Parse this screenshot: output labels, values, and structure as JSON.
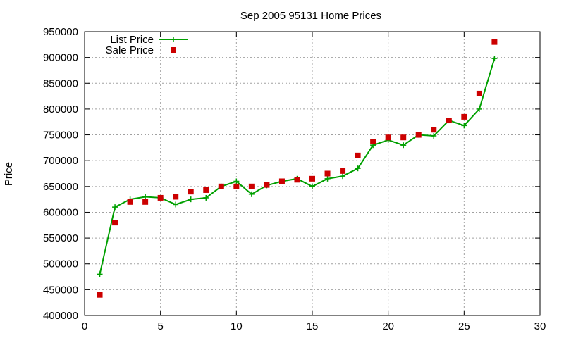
{
  "chart_data": {
    "type": "line",
    "title": "Sep 2005 95131 Home Prices",
    "xlabel": "",
    "ylabel": "Price",
    "xlim": [
      0,
      30
    ],
    "ylim": [
      400000,
      950000
    ],
    "xticks": [
      0,
      5,
      10,
      15,
      20,
      25,
      30
    ],
    "yticks": [
      400000,
      450000,
      500000,
      550000,
      600000,
      650000,
      700000,
      750000,
      800000,
      850000,
      900000,
      950000
    ],
    "grid": true,
    "legend_position": "top-left",
    "series": [
      {
        "name": "List Price",
        "style": "line-with-plus",
        "color": "#00a000",
        "x": [
          1,
          2,
          3,
          4,
          5,
          6,
          7,
          8,
          9,
          10,
          11,
          12,
          13,
          14,
          15,
          16,
          17,
          18,
          19,
          20,
          21,
          22,
          23,
          24,
          25,
          26,
          27
        ],
        "y": [
          480000,
          610000,
          625000,
          630000,
          628000,
          615000,
          625000,
          628000,
          650000,
          660000,
          635000,
          652000,
          660000,
          665000,
          650000,
          665000,
          670000,
          685000,
          730000,
          740000,
          730000,
          750000,
          748000,
          778000,
          768000,
          800000,
          898000
        ]
      },
      {
        "name": "Sale Price",
        "style": "square-points",
        "color": "#cc0000",
        "x": [
          1,
          2,
          3,
          4,
          5,
          6,
          7,
          8,
          9,
          10,
          11,
          12,
          13,
          14,
          15,
          16,
          17,
          18,
          19,
          20,
          21,
          22,
          23,
          24,
          25,
          26,
          27
        ],
        "y": [
          440000,
          580000,
          620000,
          620000,
          628000,
          630000,
          640000,
          643000,
          650000,
          650000,
          650000,
          653000,
          660000,
          663000,
          665000,
          675000,
          680000,
          710000,
          737000,
          745000,
          745000,
          750000,
          760000,
          778000,
          785000,
          830000,
          930000
        ]
      }
    ]
  }
}
